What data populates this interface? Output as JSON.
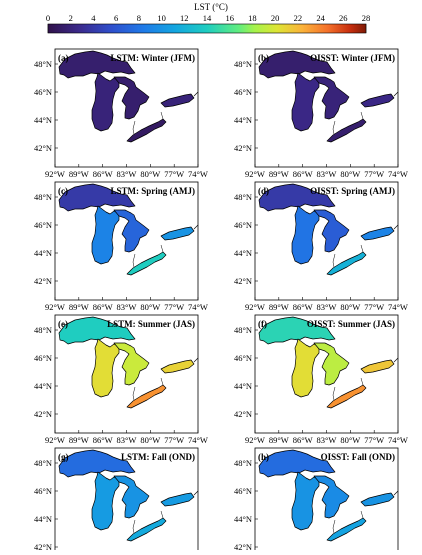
{
  "colorbar": {
    "label": "LST (°C)",
    "ticks": [
      "0",
      "2",
      "4",
      "6",
      "8",
      "10",
      "12",
      "14",
      "16",
      "18",
      "20",
      "22",
      "24",
      "26",
      "28"
    ],
    "min": 0,
    "max": 28
  },
  "axes": {
    "lon_labels": [
      "92°W",
      "89°W",
      "86°W",
      "83°W",
      "80°W",
      "77°W",
      "74°W"
    ],
    "lat_labels": [
      "48°N",
      "46°N",
      "44°N",
      "42°N"
    ]
  },
  "panels": [
    {
      "letter": "(a)",
      "title": "LSTM: Winter (JFM)",
      "model": "LSTM",
      "season": "Winter (JFM)",
      "temps": {
        "superior": 1.5,
        "michigan": 2.0,
        "huron": 1.5,
        "erie": 1.0,
        "ontario": 2.0
      }
    },
    {
      "letter": "(b)",
      "title": "OISST: Winter (JFM)",
      "model": "OISST",
      "season": "Winter (JFM)",
      "temps": {
        "superior": 1.5,
        "michigan": 2.5,
        "huron": 2.0,
        "erie": 1.5,
        "ontario": 2.5
      }
    },
    {
      "letter": "(c)",
      "title": "LSTM: Spring (AMJ)",
      "model": "LSTM",
      "season": "Spring (AMJ)",
      "temps": {
        "superior": 4.0,
        "michigan": 9.0,
        "huron": 7.0,
        "erie": 14.0,
        "ontario": 10.0
      }
    },
    {
      "letter": "(d)",
      "title": "OISST: Spring (AMJ)",
      "model": "OISST",
      "season": "Spring (AMJ)",
      "temps": {
        "superior": 4.0,
        "michigan": 8.0,
        "huron": 6.5,
        "erie": 12.0,
        "ontario": 9.0
      }
    },
    {
      "letter": "(e)",
      "title": "LSTM: Summer (JAS)",
      "model": "LSTM",
      "season": "Summer (JAS)",
      "temps": {
        "superior": 14.0,
        "michigan": 20.5,
        "huron": 19.5,
        "erie": 23.5,
        "ontario": 21.0
      }
    },
    {
      "letter": "(f)",
      "title": "OISST: Summer (JAS)",
      "model": "OISST",
      "season": "Summer (JAS)",
      "temps": {
        "superior": 14.5,
        "michigan": 20.5,
        "huron": 19.0,
        "erie": 23.5,
        "ontario": 21.5
      }
    },
    {
      "letter": "(g)",
      "title": "LSTM: Fall (OND)",
      "model": "LSTM",
      "season": "Fall (OND)",
      "temps": {
        "superior": 7.5,
        "michigan": 10.5,
        "huron": 10.0,
        "erie": 11.5,
        "ontario": 10.5
      }
    },
    {
      "letter": "(h)",
      "title": "OISST: Fall (OND)",
      "model": "OISST",
      "season": "Fall (OND)",
      "temps": {
        "superior": 7.5,
        "michigan": 10.0,
        "huron": 9.5,
        "erie": 11.0,
        "ontario": 10.0
      }
    }
  ]
}
